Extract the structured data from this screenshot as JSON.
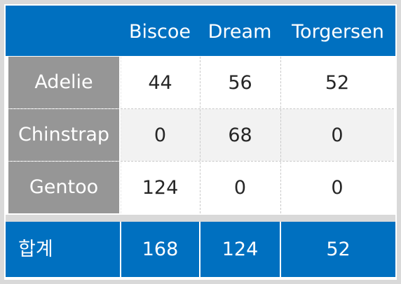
{
  "chart_data": {
    "type": "table",
    "columns": [
      "Biscoe",
      "Dream",
      "Torgersen"
    ],
    "rows": [
      {
        "label": "Adelie",
        "values": [
          "44",
          "56",
          "52"
        ]
      },
      {
        "label": "Chinstrap",
        "values": [
          "0",
          "68",
          "0"
        ]
      },
      {
        "label": "Gentoo",
        "values": [
          "124",
          "0",
          "0"
        ]
      }
    ],
    "total": {
      "label": "합계",
      "values": [
        "168",
        "124",
        "52"
      ]
    }
  },
  "colors": {
    "header": "#0070c0",
    "row_label": "#969696",
    "alt_row": "#f2f2f2",
    "border": "#d9d9d9"
  }
}
